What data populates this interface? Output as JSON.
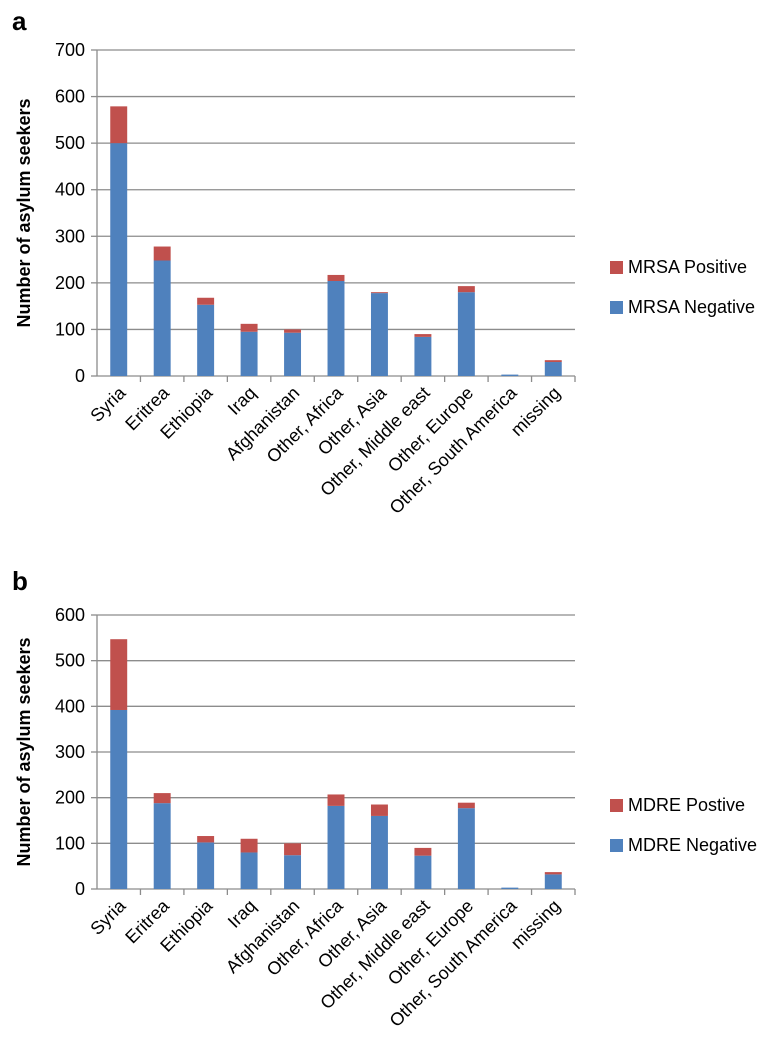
{
  "chart_data": [
    {
      "panel_label": "a",
      "type": "bar",
      "stacked": true,
      "ylabel": "Number of asylum seekers",
      "ylim": [
        0,
        700
      ],
      "yticks": [
        0,
        100,
        200,
        300,
        400,
        500,
        600,
        700
      ],
      "grid": true,
      "legend_position": "right",
      "categories": [
        "Syria",
        "Eritrea",
        "Ethiopia",
        "Iraq",
        "Afghanistan",
        "Other, Africa",
        "Other, Asia",
        "Other, Middle east",
        "Other, Europe",
        "Other, South America",
        "missing"
      ],
      "series": [
        {
          "name": "MRSA Negative",
          "color": "#4f81bd",
          "values": [
            500,
            248,
            153,
            95,
            93,
            204,
            178,
            84,
            180,
            3,
            30
          ]
        },
        {
          "name": "MRSA Positive",
          "color": "#c0504d",
          "values": [
            79,
            30,
            15,
            17,
            7,
            13,
            2,
            6,
            13,
            0,
            4
          ]
        }
      ],
      "legend_order": [
        "MRSA Positive",
        "MRSA Negative"
      ]
    },
    {
      "panel_label": "b",
      "type": "bar",
      "stacked": true,
      "ylabel": "Number of asylum seekers",
      "ylim": [
        0,
        600
      ],
      "yticks": [
        0,
        100,
        200,
        300,
        400,
        500,
        600
      ],
      "grid": true,
      "legend_position": "right",
      "categories": [
        "Syria",
        "Eritrea",
        "Ethiopia",
        "Iraq",
        "Afghanistan",
        "Other, Africa",
        "Other, Asia",
        "Other, Middle east",
        "Other, Europe",
        "Other, South America",
        "missing"
      ],
      "series": [
        {
          "name": "MDRE Negative",
          "color": "#4f81bd",
          "values": [
            392,
            188,
            102,
            80,
            74,
            182,
            160,
            73,
            177,
            3,
            32
          ]
        },
        {
          "name": "MDRE Postive",
          "color": "#c0504d",
          "values": [
            155,
            22,
            14,
            30,
            26,
            25,
            25,
            17,
            12,
            0,
            5
          ]
        }
      ],
      "legend_order": [
        "MDRE Postive",
        "MDRE Negative"
      ]
    }
  ]
}
